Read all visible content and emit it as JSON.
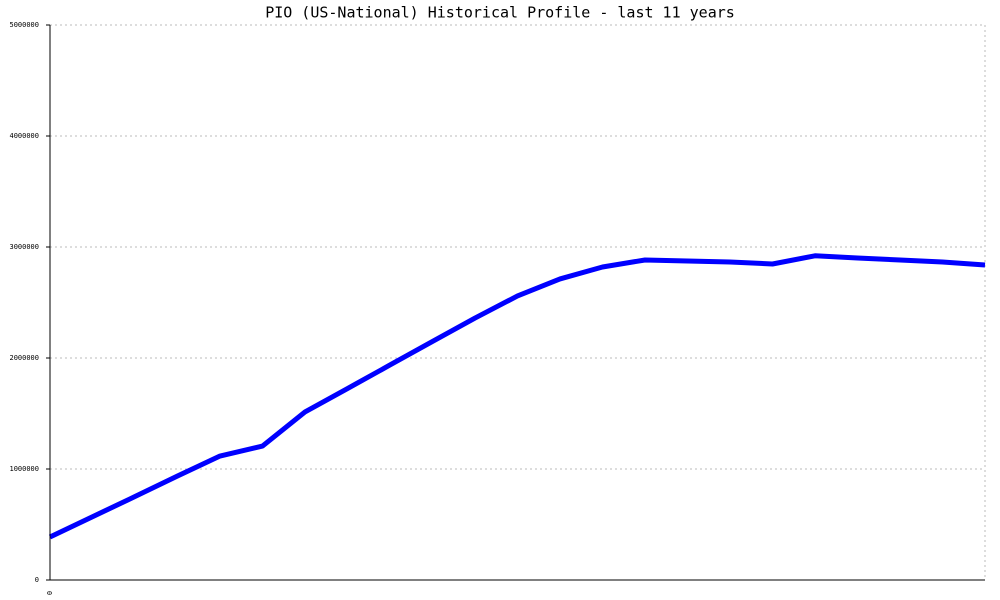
{
  "chart_data": {
    "type": "line",
    "title": "PIO (US-National) Historical Profile - last 11 years",
    "categories": [
      "0",
      null,
      null,
      null,
      null,
      null,
      null,
      null,
      null,
      null,
      null,
      null,
      null,
      null,
      null,
      null,
      null,
      null,
      null,
      null,
      null,
      null,
      null
    ],
    "series": [
      {
        "color": "#0000ff",
        "values": [
          387000,
          570000,
          752000,
          937000,
          1117000,
          1207000,
          1514000,
          1725000,
          1937000,
          2149000,
          2360000,
          2559000,
          2712000,
          2820000,
          2883000,
          2874000,
          2865000,
          2847000,
          2921000,
          2901000,
          2883000,
          2865000,
          2838000
        ]
      }
    ],
    "ylim": [
      0,
      5000000
    ],
    "yticks": [
      0,
      1000000,
      2000000,
      3000000,
      4000000,
      5000000
    ],
    "grid": true
  }
}
